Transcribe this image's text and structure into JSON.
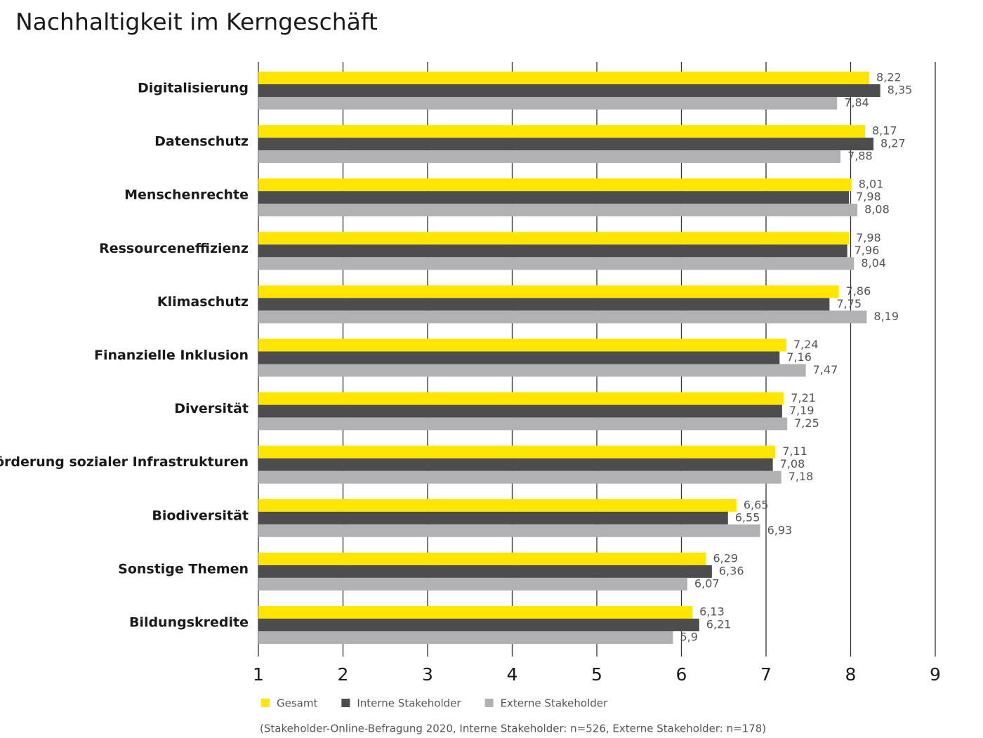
{
  "chart_data": {
    "type": "bar",
    "orientation": "horizontal",
    "title": "Nachhaltigkeit im Kerngeschäft",
    "note": "(Stakeholder-Online-Befragung 2020, Interne Stakeholder: n=526, Externe Stakeholder: n=178)",
    "categories": [
      "Digitalisierung",
      "Datenschutz",
      "Menschenrechte",
      "Ressourceneffizienz",
      "Klimaschutz",
      "Finanzielle Inklusion",
      "Diversität",
      "Förderung sozialer Infrastrukturen",
      "Biodiversität",
      "Sonstige Themen",
      "Bildungskredite"
    ],
    "series": [
      {
        "name": "Gesamt",
        "color": "#ffe600",
        "values": [
          8.22,
          8.17,
          8.01,
          7.98,
          7.86,
          7.24,
          7.21,
          7.11,
          6.65,
          6.29,
          6.13
        ],
        "value_labels": [
          "8,22",
          "8,17",
          "8,01",
          "7,98",
          "7,86",
          "7,24",
          "7,21",
          "7,11",
          "6,65",
          "6,29",
          "6,13"
        ]
      },
      {
        "name": "Interne Stakeholder",
        "color": "#4d4d4f",
        "values": [
          8.35,
          8.27,
          7.98,
          7.96,
          7.75,
          7.16,
          7.19,
          7.08,
          6.55,
          6.36,
          6.21
        ],
        "value_labels": [
          "8,35",
          "8,27",
          "7,98",
          "7,96",
          "7,75",
          "7,16",
          "7,19",
          "7,08",
          "6,55",
          "6,36",
          "6,21"
        ]
      },
      {
        "name": "Externe Stakeholder",
        "color": "#b1b1b3",
        "values": [
          7.84,
          7.88,
          8.08,
          8.04,
          8.19,
          7.47,
          7.25,
          7.18,
          6.93,
          6.07,
          5.9
        ],
        "value_labels": [
          "7,84",
          "7,88",
          "8,08",
          "8,04",
          "8,19",
          "7,47",
          "7,25",
          "7,18",
          "6,93",
          "6,07",
          "5,9"
        ]
      }
    ],
    "xlim": [
      1,
      9
    ],
    "xticks": [
      1,
      2,
      3,
      4,
      5,
      6,
      7,
      8,
      9
    ],
    "grid": true
  }
}
